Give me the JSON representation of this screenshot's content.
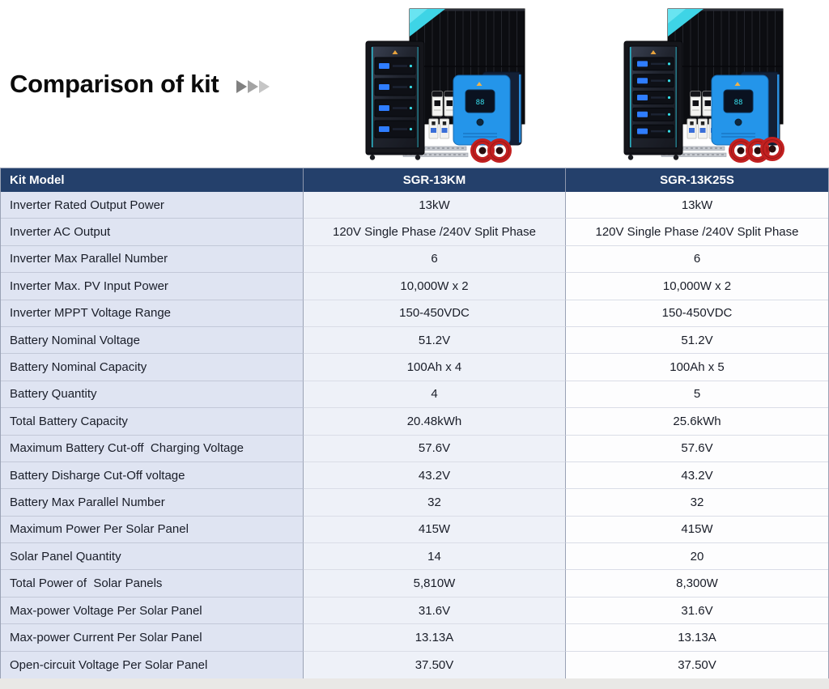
{
  "page": {
    "title": "Comparison of kit"
  },
  "title_arrows": {
    "count": 3,
    "colors": [
      "#808080",
      "#a3a3a3",
      "#c6c6c6"
    ]
  },
  "products": [
    {
      "id": "sgr-13km",
      "battery_modules": 4,
      "medium_breakers": 2,
      "small_breakers": 2,
      "cable_coils": 2
    },
    {
      "id": "sgr-13k25s",
      "battery_modules": 5,
      "medium_breakers": 2,
      "small_breakers": 4,
      "cable_coils": 3
    }
  ],
  "table": {
    "header": {
      "label": "Kit Model",
      "columns": [
        "SGR-13KM",
        "SGR-13K25S"
      ]
    },
    "rows": [
      {
        "label": "Inverter Rated Output Power",
        "values": [
          "13kW",
          "13kW"
        ]
      },
      {
        "label": "Inverter AC Output",
        "values": [
          "120V Single Phase /240V Split Phase",
          "120V Single Phase /240V Split Phase"
        ]
      },
      {
        "label": "Inverter Max Parallel Number",
        "values": [
          "6",
          "6"
        ]
      },
      {
        "label": "Inverter Max. PV Input Power",
        "values": [
          "10,000W x 2",
          "10,000W x 2"
        ]
      },
      {
        "label": "Inverter MPPT Voltage Range",
        "values": [
          "150-450VDC",
          "150-450VDC"
        ]
      },
      {
        "label": "Battery Nominal Voltage",
        "values": [
          "51.2V",
          "51.2V"
        ]
      },
      {
        "label": "Battery Nominal Capacity",
        "values": [
          "100Ah x 4",
          "100Ah x 5"
        ]
      },
      {
        "label": "Battery Quantity",
        "values": [
          "4",
          "5"
        ]
      },
      {
        "label": "Total Battery Capacity",
        "values": [
          "20.48kWh",
          "25.6kWh"
        ]
      },
      {
        "label": "Maximum Battery Cut-off  Charging Voltage",
        "values": [
          "57.6V",
          "57.6V"
        ]
      },
      {
        "label": "Battery Disharge Cut-Off voltage",
        "values": [
          "43.2V",
          "43.2V"
        ]
      },
      {
        "label": "Battery Max Parallel Number",
        "values": [
          "32",
          "32"
        ]
      },
      {
        "label": "Maximum Power Per Solar Panel",
        "values": [
          "415W",
          "415W"
        ]
      },
      {
        "label": "Solar Panel Quantity",
        "values": [
          "14",
          "20"
        ]
      },
      {
        "label": "Total Power of  Solar Panels",
        "values": [
          "5,810W",
          "8,300W"
        ]
      },
      {
        "label": "Max-power Voltage Per Solar Panel",
        "values": [
          "31.6V",
          "31.6V"
        ]
      },
      {
        "label": "Max-power Current Per Solar Panel",
        "values": [
          "13.13A",
          "13.13A"
        ]
      },
      {
        "label": "Open-circuit Voltage Per Solar Panel",
        "values": [
          "37.50V",
          "37.50V"
        ]
      }
    ]
  },
  "colors": {
    "header_bg": "#24406b",
    "label_col_bg": "#dfe4f2",
    "value_col1_bg": "#eef1f8",
    "value_col2_bg": "#fdfdfe",
    "border_strong": "#9aa2b5",
    "accent_cyan": "#3ed4e6",
    "inverter_blue": "#2495ea",
    "cable_red": "#c22020"
  }
}
